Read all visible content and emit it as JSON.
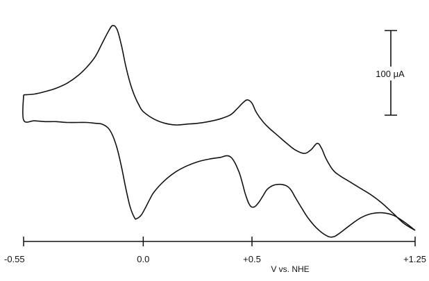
{
  "chart_data": {
    "type": "line",
    "title": "",
    "xlabel": "V vs. NHE",
    "ylabel": "",
    "xlim": [
      -0.55,
      1.25
    ],
    "ylim": [
      -128,
      135
    ],
    "grid": false,
    "legend": "none",
    "x_ticks": [
      {
        "value": -0.55,
        "label": "-0.55"
      },
      {
        "value": 0.0,
        "label": "0.0"
      },
      {
        "value": 0.5,
        "label": "+0.5"
      },
      {
        "value": 1.25,
        "label": "+1.25"
      }
    ],
    "scale_bar": {
      "label": "100 μA",
      "value": 100
    },
    "series": [
      {
        "x": [
          -0.55,
          -0.5,
          -0.45,
          -0.4,
          -0.35,
          -0.3,
          -0.26,
          -0.22,
          -0.19,
          -0.16,
          -0.14,
          -0.12,
          -0.1,
          -0.08,
          -0.06,
          -0.04,
          -0.02,
          0.0,
          0.05,
          0.1,
          0.15,
          0.2,
          0.25,
          0.3,
          0.35,
          0.4,
          0.43,
          0.46,
          0.48,
          0.5,
          0.52,
          0.55,
          0.58,
          0.62,
          0.66,
          0.7,
          0.74,
          0.77,
          0.8,
          0.82,
          0.84,
          0.87,
          0.9,
          0.95,
          1.0,
          1.05,
          1.1,
          1.15,
          1.2,
          1.25
        ],
        "y": [
          34,
          35,
          38,
          42,
          48,
          57,
          67,
          80,
          95,
          110,
          117,
          112,
          93,
          68,
          48,
          33,
          22,
          14,
          5,
          0,
          -2,
          -1,
          0,
          2,
          5,
          10,
          17,
          25,
          28,
          24,
          13,
          2,
          -6,
          -15,
          -24,
          -32,
          -36,
          -32,
          -24,
          -30,
          -42,
          -55,
          -62,
          -70,
          -78,
          -86,
          -96,
          -108,
          -120,
          -128
        ]
      },
      {
        "x": [
          1.25,
          1.2,
          1.15,
          1.1,
          1.05,
          1.0,
          0.95,
          0.9,
          0.87,
          0.84,
          0.8,
          0.76,
          0.73,
          0.7,
          0.68,
          0.66,
          0.63,
          0.6,
          0.57,
          0.55,
          0.53,
          0.51,
          0.49,
          0.47,
          0.44,
          0.4,
          0.35,
          0.3,
          0.25,
          0.2,
          0.15,
          0.1,
          0.05,
          0.03,
          0.01,
          -0.01,
          -0.03,
          -0.04,
          -0.06,
          -0.08,
          -0.1,
          -0.12,
          -0.14,
          -0.16,
          -0.19,
          -0.22,
          -0.26,
          -0.3,
          -0.35,
          -0.4,
          -0.45,
          -0.5,
          -0.55,
          -0.55
        ],
        "y": [
          -128,
          -118,
          -110,
          -107,
          -108,
          -113,
          -122,
          -132,
          -136,
          -134,
          -126,
          -114,
          -102,
          -89,
          -80,
          -75,
          -73,
          -74,
          -79,
          -87,
          -95,
          -100,
          -98,
          -85,
          -58,
          -40,
          -41,
          -43,
          -46,
          -51,
          -58,
          -68,
          -82,
          -91,
          -101,
          -110,
          -114,
          -113,
          -100,
          -78,
          -52,
          -30,
          -15,
          -6,
          -1,
          0,
          1,
          1,
          1,
          2,
          2,
          3,
          4,
          34
        ]
      }
    ]
  }
}
